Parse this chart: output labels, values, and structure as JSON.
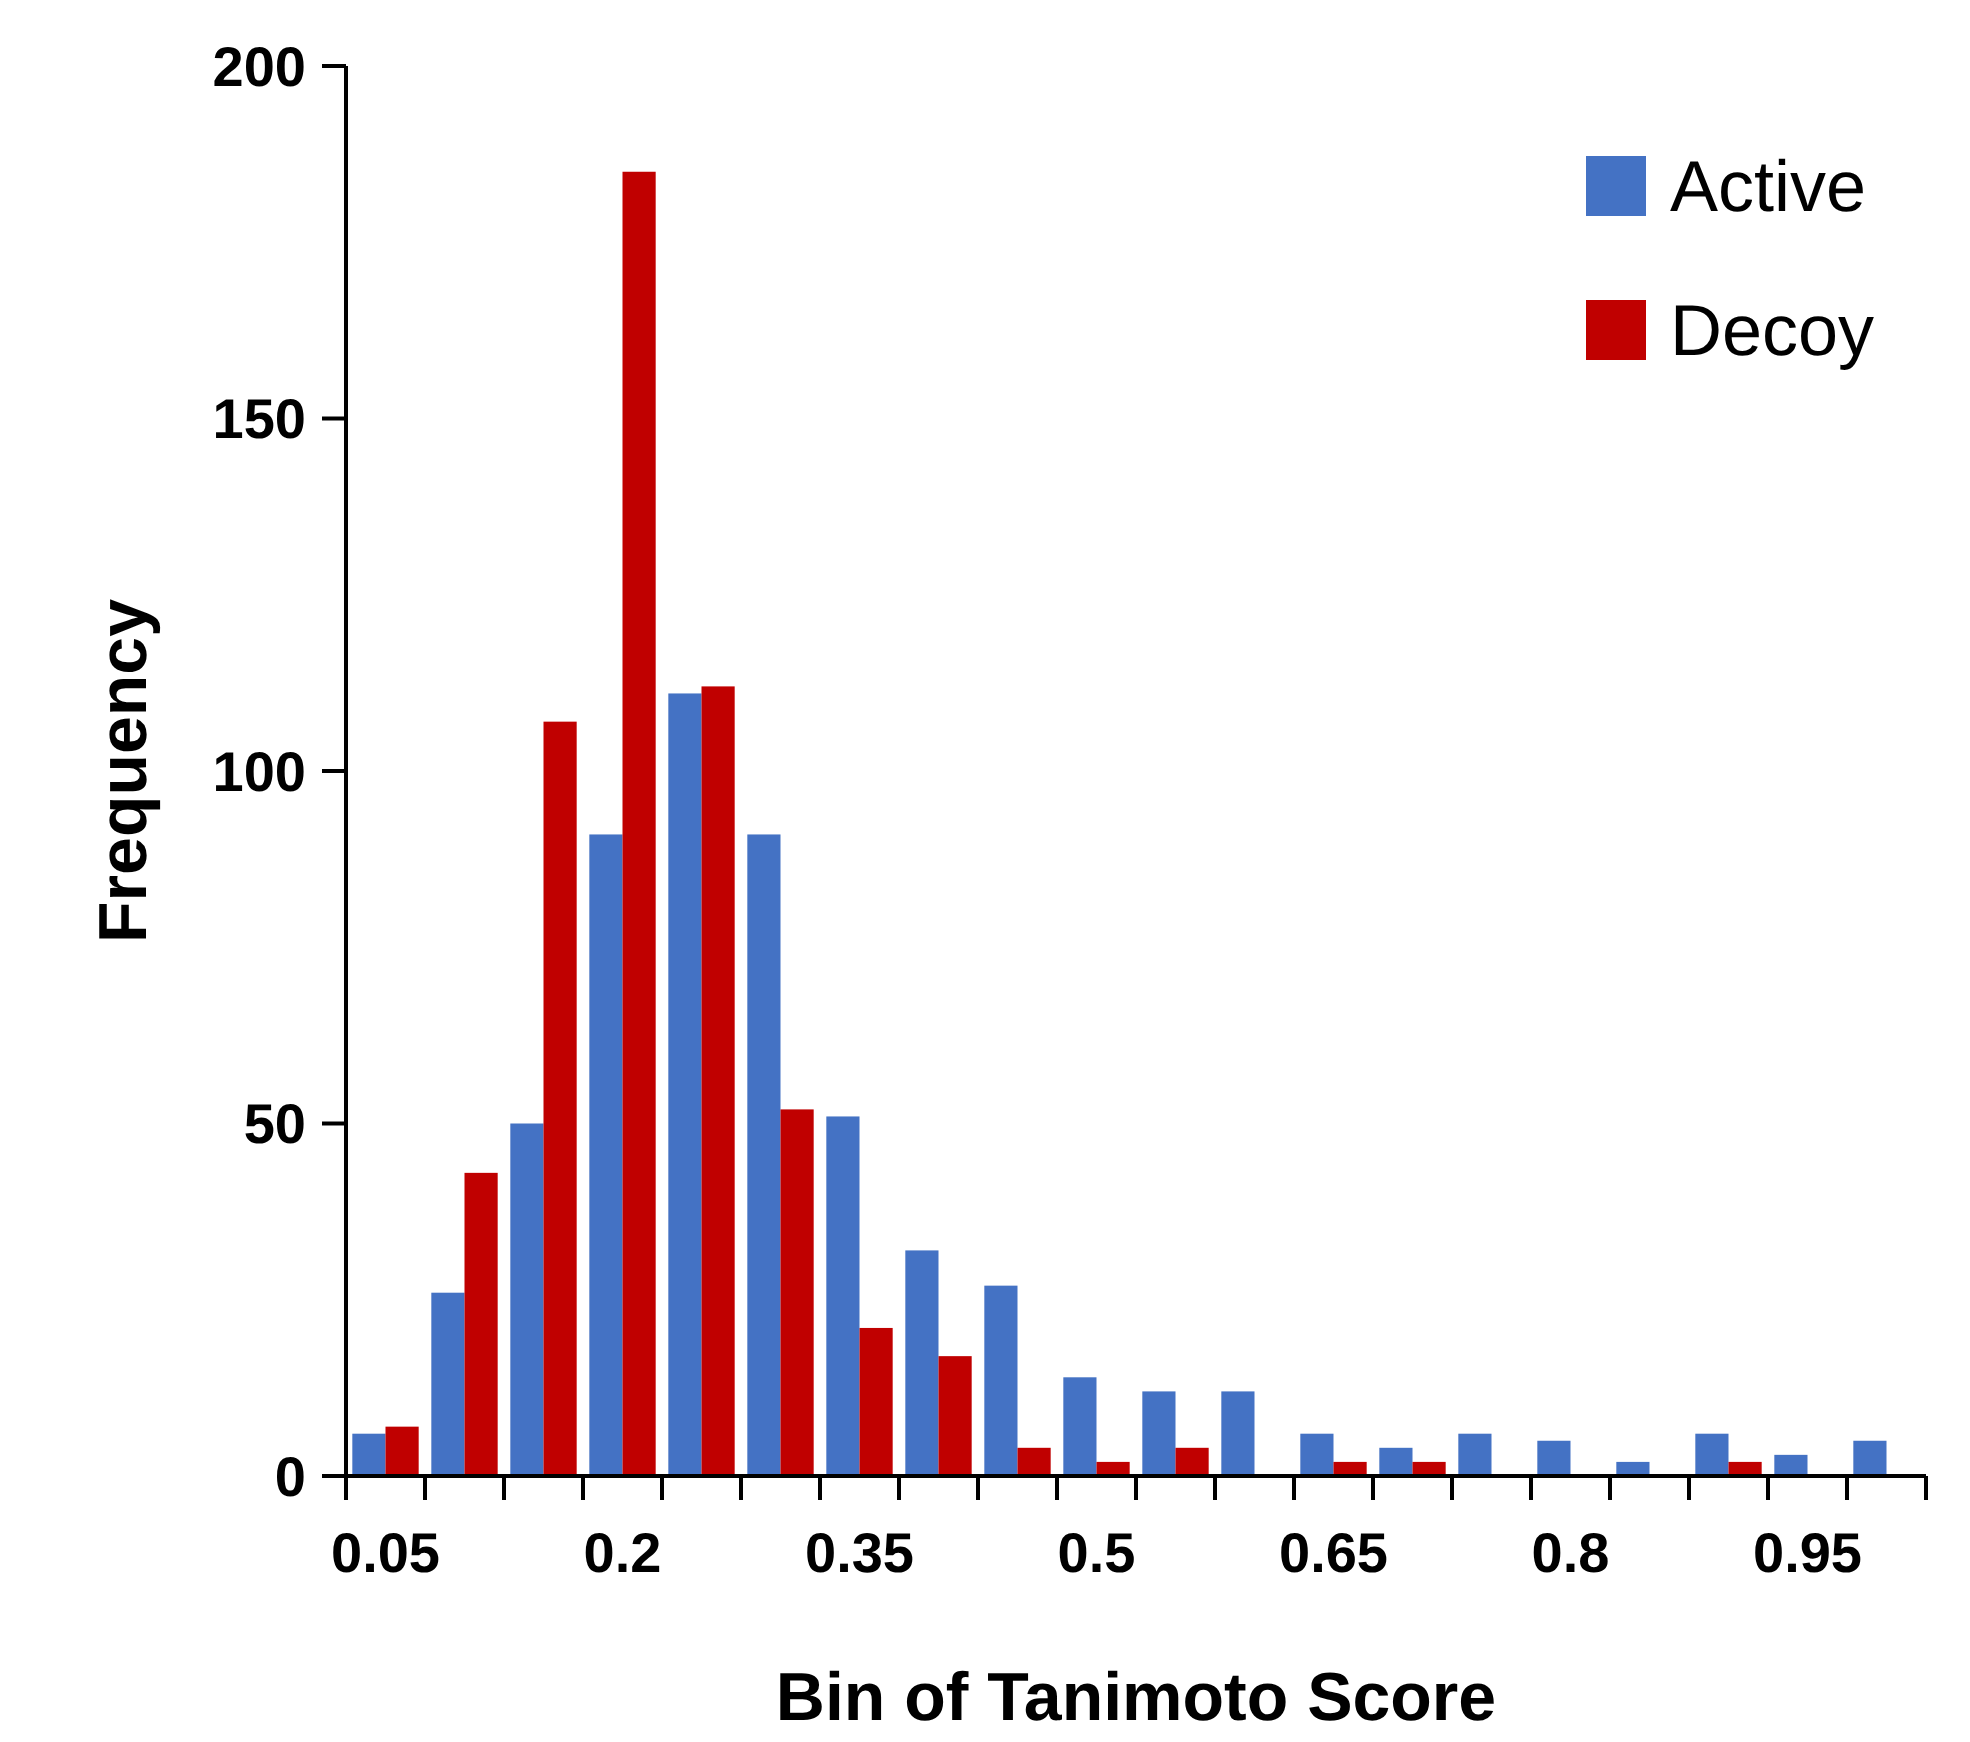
{
  "chart_data": {
    "type": "bar",
    "xlabel": "Bin of Tanimoto Score",
    "ylabel": "Frequency",
    "categories": [
      "0.05",
      null,
      null,
      "0.2",
      null,
      null,
      "0.35",
      null,
      null,
      "0.5",
      null,
      null,
      "0.65",
      null,
      null,
      "0.8",
      null,
      null,
      "0.95",
      null
    ],
    "series": [
      {
        "name": "Active",
        "color": "#4472c4",
        "values": [
          6,
          26,
          50,
          91,
          111,
          91,
          51,
          32,
          27,
          14,
          12,
          12,
          6,
          4,
          6,
          5,
          2,
          6,
          3,
          5
        ]
      },
      {
        "name": "Decoy",
        "color": "#c00000",
        "values": [
          7,
          43,
          107,
          185,
          112,
          52,
          21,
          17,
          4,
          2,
          4,
          0,
          2,
          2,
          0,
          0,
          0,
          2,
          0,
          0
        ]
      }
    ],
    "ylim": [
      0,
      200
    ],
    "yticks": [
      0,
      50,
      100,
      150,
      200
    ],
    "grid": false,
    "legend": "top right"
  }
}
